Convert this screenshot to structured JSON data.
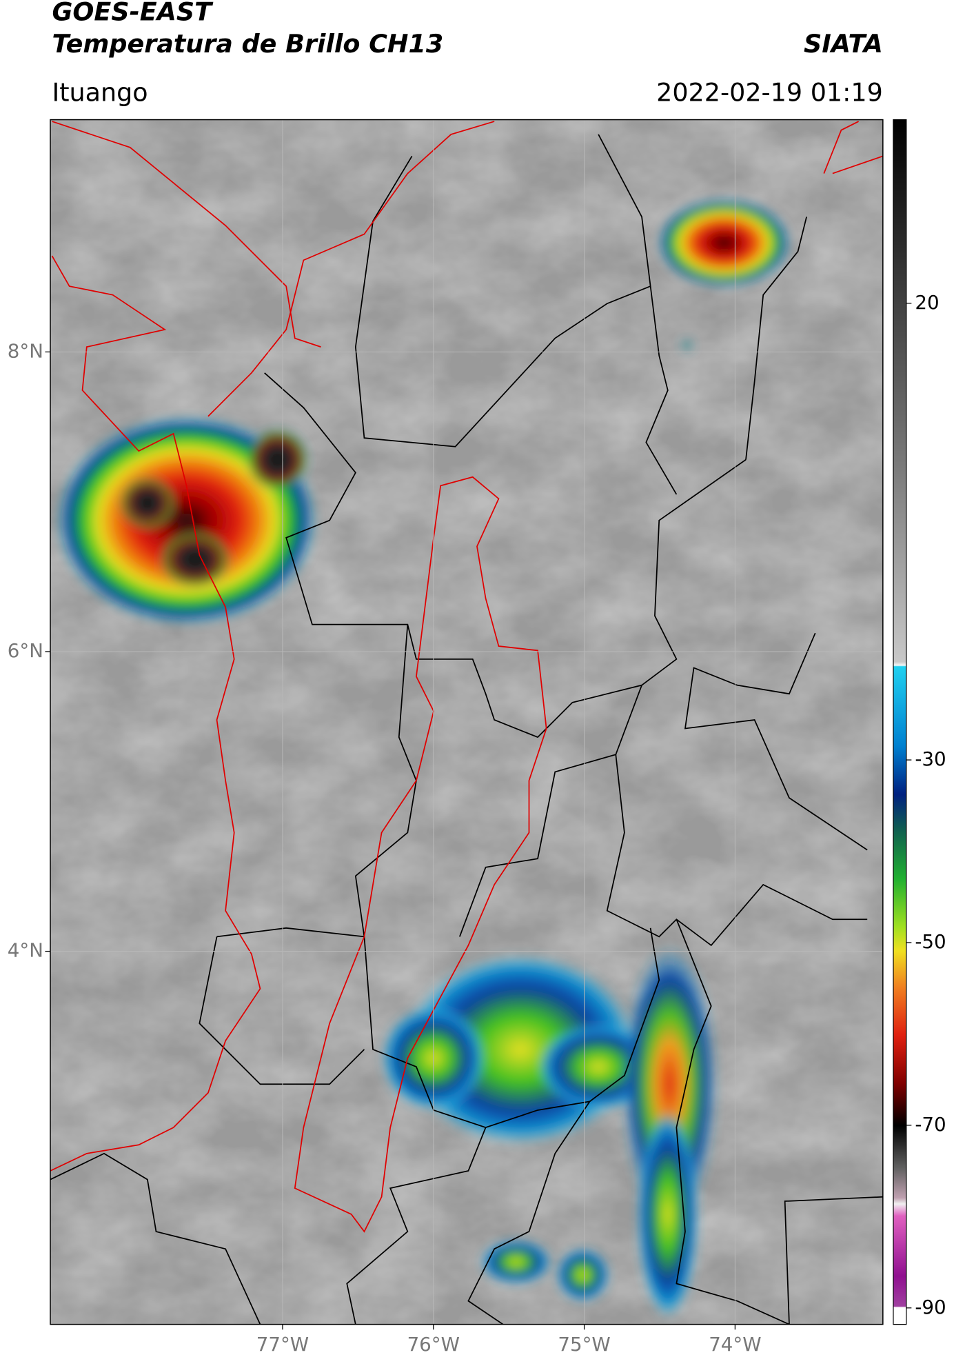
{
  "header": {
    "title": "GOES-EAST",
    "subtitle": "Temperatura de Brillo CH13",
    "source": "SIATA",
    "location": "Ituango",
    "datetime": "2022-02-19 01:19"
  },
  "map": {
    "xlim": [
      -78.54,
      -73.02
    ],
    "ylim": [
      1.51,
      9.55
    ],
    "xticks": [
      {
        "value": -77,
        "label": "77°W"
      },
      {
        "value": -76,
        "label": "76°W"
      },
      {
        "value": -75,
        "label": "75°W"
      },
      {
        "value": -74,
        "label": "74°W"
      }
    ],
    "yticks": [
      {
        "value": 8,
        "label": "8°N"
      },
      {
        "value": 6,
        "label": "6°N"
      },
      {
        "value": 4,
        "label": "4°N"
      }
    ],
    "grid": true
  },
  "colorbar": {
    "ylim": [
      -91.8,
      40.1
    ],
    "yticks": [
      20,
      -30,
      -50,
      -70,
      -90
    ]
  }
}
